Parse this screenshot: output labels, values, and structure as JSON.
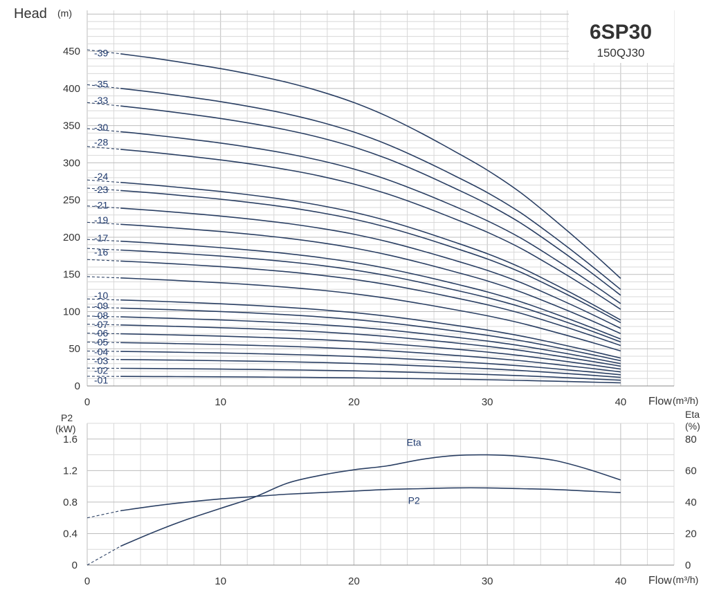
{
  "model": {
    "title": "6SP30",
    "subtitle": "150QJ30"
  },
  "colors": {
    "curve": "#2a3f63",
    "grid_minor": "#d8d8d8",
    "grid_major": "#bdbdbd",
    "axis_text": "#333333",
    "label": "#1f3a6e"
  },
  "chart_data": [
    {
      "type": "line",
      "title": "",
      "ylabel": "Head",
      "yunit": "(m)",
      "xlabel": "Flow",
      "xunit": "(m³/h)",
      "xlim": [
        0,
        44
      ],
      "ylim": [
        0,
        505
      ],
      "xticks": [
        0,
        10,
        20,
        30,
        40
      ],
      "yticks": [
        0,
        50,
        100,
        150,
        200,
        250,
        300,
        350,
        400,
        450
      ],
      "grid": true,
      "x": [
        0,
        2.5,
        5,
        7.5,
        10,
        12.5,
        15,
        17.5,
        20,
        22.5,
        25,
        27.5,
        30,
        32.5,
        35,
        37.5,
        40
      ],
      "factors": [
        1.0,
        0.988,
        0.975,
        0.96,
        0.944,
        0.925,
        0.903,
        0.876,
        0.843,
        0.802,
        0.753,
        0.699,
        0.642,
        0.575,
        0.495,
        0.41,
        0.32
      ],
      "series": [
        {
          "name": "-39",
          "shutoff": 452,
          "label_y": 448
        },
        {
          "name": "-35",
          "shutoff": 405,
          "label_y": 406
        },
        {
          "name": "-33",
          "shutoff": 381,
          "label_y": 384
        },
        {
          "name": "-30",
          "shutoff": 346,
          "label_y": 348
        },
        {
          "name": "-28",
          "shutoff": 322,
          "label_y": 328
        },
        {
          "name": "-24",
          "shutoff": 277,
          "label_y": 282
        },
        {
          "name": "-23",
          "shutoff": 266,
          "label_y": 264
        },
        {
          "name": "-21",
          "shutoff": 242,
          "label_y": 243
        },
        {
          "name": "-19",
          "shutoff": 220,
          "label_y": 223
        },
        {
          "name": "-17",
          "shutoff": 197,
          "label_y": 199
        },
        {
          "name": "-16",
          "shutoff": 185,
          "label_y": 180
        },
        {
          "name": "",
          "shutoff": 170,
          "label_y": null
        },
        {
          "name": "",
          "shutoff": 147,
          "label_y": null
        },
        {
          "name": "-10",
          "shutoff": 117,
          "label_y": 122
        },
        {
          "name": "-09",
          "shutoff": 106,
          "label_y": 108
        },
        {
          "name": "-08",
          "shutoff": 94,
          "label_y": 95
        },
        {
          "name": "-07",
          "shutoff": 83,
          "label_y": 83
        },
        {
          "name": "-06",
          "shutoff": 71,
          "label_y": 71
        },
        {
          "name": "-05",
          "shutoff": 59,
          "label_y": 59
        },
        {
          "name": "-04",
          "shutoff": 47,
          "label_y": 46
        },
        {
          "name": "-03",
          "shutoff": 36,
          "label_y": 34
        },
        {
          "name": "-02",
          "shutoff": 24,
          "label_y": 21
        },
        {
          "name": "-01",
          "shutoff": 13,
          "label_y": 8
        }
      ]
    },
    {
      "type": "line",
      "title": "",
      "xlabel": "Flow",
      "xunit": "(m³/h)",
      "xlim": [
        0,
        44
      ],
      "xticks": [
        0,
        10,
        20,
        30,
        40
      ],
      "y_left": {
        "label": "P2",
        "unit": "(kW)",
        "lim": [
          0,
          1.8
        ],
        "ticks": [
          "0",
          "0.4",
          "0.8",
          "1.2",
          "1.6"
        ]
      },
      "y_right": {
        "label": "Eta",
        "unit": "(%)",
        "lim": [
          0,
          90
        ],
        "ticks": [
          "0",
          "20",
          "40",
          "60",
          "80"
        ]
      },
      "grid": true,
      "series": [
        {
          "name": "Eta",
          "axis": "right",
          "label_at": [
            24.5,
            78
          ],
          "x": [
            0,
            2.5,
            5,
            7.5,
            10,
            12.5,
            15,
            17.5,
            20,
            22.5,
            25,
            27.5,
            30,
            32.5,
            35,
            37.5,
            40
          ],
          "y": [
            0,
            12,
            21,
            29,
            36,
            43,
            52,
            57,
            60.5,
            63,
            67,
            69.5,
            70,
            69,
            66.5,
            61,
            54
          ]
        },
        {
          "name": "P2",
          "axis": "left",
          "label_at": [
            24.5,
            0.82
          ],
          "x": [
            0,
            2.5,
            5,
            7.5,
            10,
            12.5,
            15,
            17.5,
            20,
            22.5,
            25,
            27.5,
            30,
            32.5,
            35,
            37.5,
            40
          ],
          "y": [
            0.6,
            0.69,
            0.75,
            0.8,
            0.84,
            0.87,
            0.9,
            0.92,
            0.94,
            0.96,
            0.97,
            0.98,
            0.98,
            0.97,
            0.96,
            0.94,
            0.92
          ]
        }
      ]
    }
  ]
}
